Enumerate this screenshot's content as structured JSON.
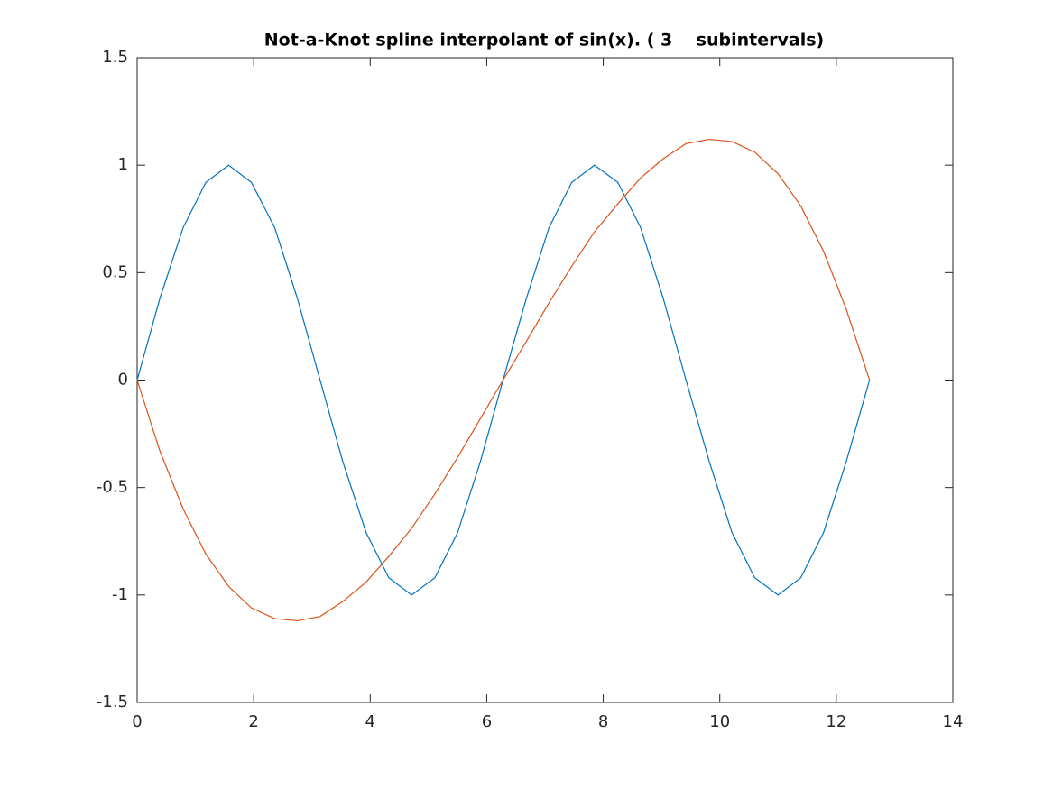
{
  "chart_data": {
    "type": "line",
    "title": "Not-a-Knot spline interpolant of sin(x). ( 3    subintervals)",
    "x": [
      0,
      0.39,
      0.79,
      1.18,
      1.57,
      1.96,
      2.36,
      2.75,
      3.14,
      3.53,
      3.93,
      4.32,
      4.71,
      5.11,
      5.5,
      5.89,
      6.28,
      6.68,
      7.07,
      7.46,
      7.85,
      8.25,
      8.64,
      9.03,
      9.42,
      9.82,
      10.21,
      10.6,
      11.0,
      11.39,
      11.78,
      12.17,
      12.57
    ],
    "series": [
      {
        "color": "#0072bd",
        "values": [
          0,
          0.38,
          0.71,
          0.92,
          1,
          0.92,
          0.71,
          0.38,
          0,
          -0.38,
          -0.71,
          -0.92,
          -1,
          -0.92,
          -0.71,
          -0.38,
          0,
          0.38,
          0.71,
          0.92,
          1,
          0.92,
          0.71,
          0.38,
          0,
          -0.38,
          -0.71,
          -0.92,
          -1,
          -0.92,
          -0.71,
          -0.38,
          0
        ]
      },
      {
        "color": "#d95319",
        "values": [
          0,
          -0.33,
          -0.6,
          -0.81,
          -0.96,
          -1.06,
          -1.11,
          -1.12,
          -1.1,
          -1.03,
          -0.94,
          -0.82,
          -0.69,
          -0.53,
          -0.36,
          -0.18,
          0,
          0.18,
          0.36,
          0.53,
          0.69,
          0.82,
          0.94,
          1.03,
          1.1,
          1.12,
          1.11,
          1.06,
          0.96,
          0.81,
          0.6,
          0.33,
          0
        ]
      }
    ],
    "xlim": [
      0,
      14
    ],
    "xticks": [
      0,
      2,
      4,
      6,
      8,
      10,
      12,
      14
    ],
    "ylim": [
      -1.5,
      1.5
    ],
    "yticks": [
      -1.5,
      -1,
      -0.5,
      0,
      0.5,
      1,
      1.5
    ],
    "grid": false
  }
}
